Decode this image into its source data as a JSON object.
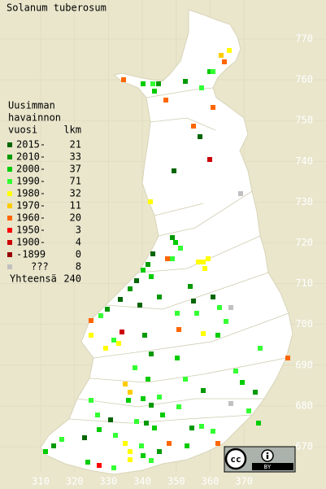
{
  "title": "Solanum tuberosum",
  "legend": {
    "heading": [
      "Uusimman",
      "havainnon"
    ],
    "year_header": "vuosi",
    "count_header": "lkm",
    "items": [
      {
        "label": "2015-",
        "count": 21,
        "color": "#006600"
      },
      {
        "label": "2010-",
        "count": 33,
        "color": "#009900"
      },
      {
        "label": "2000-",
        "count": 37,
        "color": "#00cc00"
      },
      {
        "label": "1990-",
        "count": 71,
        "color": "#33ff33"
      },
      {
        "label": "1980-",
        "count": 32,
        "color": "#ffff00"
      },
      {
        "label": "1970-",
        "count": 11,
        "color": "#ffcc00"
      },
      {
        "label": "1960-",
        "count": 20,
        "color": "#ff6600"
      },
      {
        "label": "1950-",
        "count": 3,
        "color": "#ff0000"
      },
      {
        "label": "1900-",
        "count": 4,
        "color": "#cc0000"
      },
      {
        "label": "-1899",
        "count": 0,
        "color": "#990000"
      },
      {
        "label": "???",
        "count": 8,
        "color": "#c0c0c0"
      }
    ],
    "total_label": "Yhteensä",
    "total": 240
  },
  "axes": {
    "xticks": [
      310,
      320,
      330,
      340,
      350,
      360,
      370
    ],
    "yticks": [
      670,
      680,
      690,
      700,
      710,
      720,
      730,
      740,
      750,
      760,
      770
    ]
  },
  "license": {
    "cc": "cc",
    "by": "BY"
  }
}
